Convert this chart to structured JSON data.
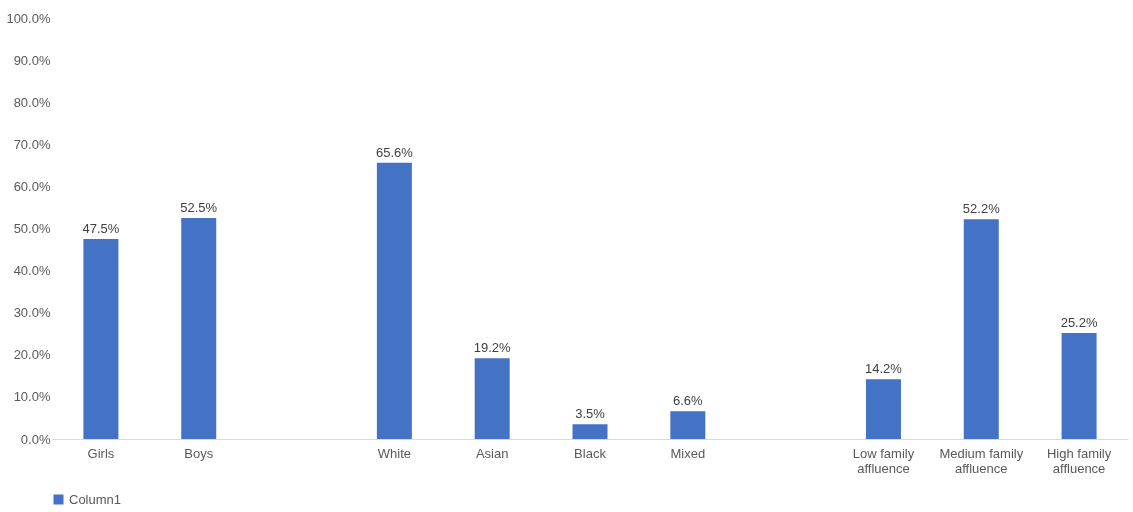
{
  "chart_data": {
    "type": "bar",
    "categories": [
      "Girls",
      "Boys",
      null,
      "White",
      "Asian",
      "Black",
      "Mixed",
      null,
      "Low family\naffluence",
      "Medium family\naffluence",
      "High family\naffluence"
    ],
    "series": [
      {
        "name": "Column1",
        "color": "#4472c4",
        "values": [
          47.5,
          52.5,
          null,
          65.6,
          19.2,
          3.5,
          6.6,
          null,
          14.2,
          52.2,
          25.2
        ],
        "value_labels": [
          "47.5%",
          "52.5%",
          null,
          "65.6%",
          "19.2%",
          "3.5%",
          "6.6%",
          null,
          "14.2%",
          "52.2%",
          "25.2%"
        ]
      }
    ],
    "ylim": [
      0,
      100
    ],
    "yticks": [
      {
        "value": 0,
        "label": "0.0%"
      },
      {
        "value": 10,
        "label": "10.0%"
      },
      {
        "value": 20,
        "label": "20.0%"
      },
      {
        "value": 30,
        "label": "30.0%"
      },
      {
        "value": 40,
        "label": "40.0%"
      },
      {
        "value": 50,
        "label": "50.0%"
      },
      {
        "value": 60,
        "label": "60.0%"
      },
      {
        "value": 70,
        "label": "70.0%"
      },
      {
        "value": 80,
        "label": "80.0%"
      },
      {
        "value": 90,
        "label": "90.0%"
      },
      {
        "value": 100,
        "label": "100.0%"
      }
    ],
    "grid": false,
    "legend": "bottom"
  }
}
